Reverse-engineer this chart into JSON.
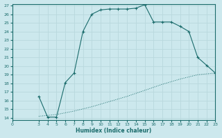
{
  "xlabel": "Humidex (Indice chaleur)",
  "bg_color": "#cce8ed",
  "line_color": "#1a6b6b",
  "grid_color": "#b8d8dd",
  "xlim": [
    0,
    23
  ],
  "ylim": [
    14,
    27
  ],
  "xticks": [
    0,
    3,
    4,
    5,
    6,
    7,
    8,
    9,
    10,
    11,
    12,
    13,
    14,
    15,
    16,
    17,
    18,
    19,
    20,
    21,
    22,
    23
  ],
  "yticks": [
    14,
    15,
    16,
    17,
    18,
    19,
    20,
    21,
    22,
    23,
    24,
    25,
    26,
    27
  ],
  "curve1_x": [
    3,
    4,
    5,
    6,
    7,
    8,
    9,
    10,
    11,
    12,
    13,
    14,
    15,
    16,
    17,
    18,
    19,
    20,
    21,
    22,
    23
  ],
  "curve1_y": [
    16.5,
    14.1,
    14.1,
    18.1,
    19.2,
    24.0,
    26.0,
    26.5,
    26.6,
    26.6,
    26.6,
    26.7,
    27.1,
    25.1,
    25.1,
    25.1,
    24.6,
    24.0,
    21.0,
    20.1,
    19.2
  ],
  "curve2_x": [
    3,
    5,
    7,
    9,
    11,
    13,
    15,
    17,
    19,
    21,
    23
  ],
  "curve2_y": [
    14.2,
    14.4,
    14.8,
    15.3,
    15.9,
    16.5,
    17.2,
    17.9,
    18.5,
    19.0,
    19.2
  ]
}
